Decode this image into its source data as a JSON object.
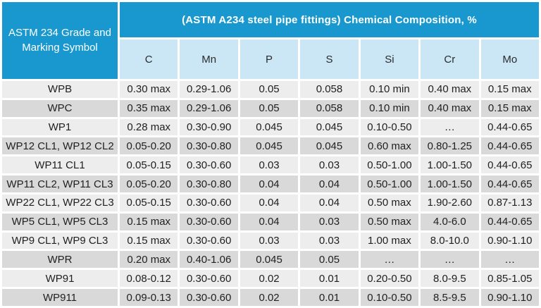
{
  "chart_data": {
    "type": "table",
    "title": "(ASTM A234 steel pipe fittings) Chemical Composition, %",
    "row_header_lines": [
      "ASTM 234 Grade and",
      "Marking Symbol"
    ],
    "row_header_full": "ASTM 234 Grade and Marking Symbol",
    "columns": [
      "C",
      "Mn",
      "P",
      "S",
      "Si",
      "Cr",
      "Mo"
    ],
    "rows": [
      {
        "grade": "WPB",
        "values": [
          "0.30 max",
          "0.29-1.06",
          "0.05",
          "0.058",
          "0.10 min",
          "0.40 max",
          "0.15 max"
        ]
      },
      {
        "grade": "WPC",
        "values": [
          "0.35 max",
          "0.29-1.06",
          "0.05",
          "0.058",
          "0.10 min",
          "0.40 max",
          "0.15 max"
        ]
      },
      {
        "grade": "WP1",
        "values": [
          "0.28 max",
          "0.30-0.90",
          "0.045",
          "0.045",
          "0.10-0.50",
          "…",
          "0.44-0.65"
        ]
      },
      {
        "grade": "WP12 CL1, WP12 CL2",
        "values": [
          "0.05-0.20",
          "0.30-0.80",
          "0.045",
          "0.045",
          "0.60 max",
          "0.80-1.25",
          "0.44-0.65"
        ]
      },
      {
        "grade": "WP11 CL1",
        "values": [
          "0.05-0.15",
          "0.30-0.60",
          "0.03",
          "0.03",
          "0.50-1.00",
          "1.00-1.50",
          "0.44-0.65"
        ]
      },
      {
        "grade": "WP11 CL2, WP11 CL3",
        "values": [
          "0.05-0.20",
          "0.30-0.80",
          "0.04",
          "0.04",
          "0.50-1.00",
          "1.00-1.50",
          "0.44-0.65"
        ]
      },
      {
        "grade": "WP22 CL1, WP22 CL3",
        "values": [
          "0.05-0.15",
          "0.30-0.60",
          "0.04",
          "0.04",
          "0.50 max",
          "1.90-2.60",
          "0.87-1.13"
        ]
      },
      {
        "grade": "WP5 CL1, WP5 CL3",
        "values": [
          "0.15 max",
          "0.30-0.60",
          "0.04",
          "0.03",
          "0.50 max",
          "4.0-6.0",
          "0.44-0.65"
        ]
      },
      {
        "grade": "WP9 CL1, WP9 CL3",
        "values": [
          "0.15 max",
          "0.30-0.60",
          "0.03",
          "0.03",
          "1.00 max",
          "8.0-10.0",
          "0.90-1.10"
        ]
      },
      {
        "grade": "WPR",
        "values": [
          "0.20 max",
          "0.40-1.06",
          "0.045",
          "0.05",
          "…",
          "…",
          "…"
        ]
      },
      {
        "grade": "WP91",
        "values": [
          "0.08-0.12",
          "0.30-0.60",
          "0.02",
          "0.01",
          "0.20-0.50",
          "8.0-9.5",
          "0.85-1.05"
        ]
      },
      {
        "grade": "WP911",
        "values": [
          "0.09-0.13",
          "0.30-0.60",
          "0.02",
          "0.01",
          "0.10-0.50",
          "8.5-9.5",
          "0.90-1.10"
        ]
      }
    ]
  },
  "colors": {
    "header_cyan": "#1898CE",
    "subheader_blue": "#CBE7F6",
    "row_light": "#EDEDED",
    "row_dark": "#D9D9D9",
    "grid_white": "#FFFFFF",
    "header_text": "#FFFFFF",
    "body_text": "#212121"
  }
}
